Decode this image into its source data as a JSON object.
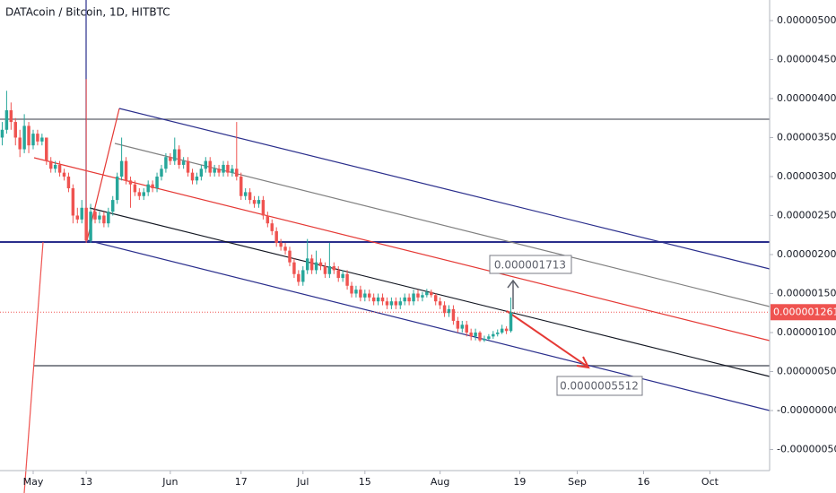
{
  "chart_data": {
    "type": "candlestick",
    "title": "DATAcoin / Bitcoin, 1D, HITBTC",
    "categories": [
      null,
      null,
      null,
      null,
      null,
      null,
      null,
      "May",
      null,
      null,
      null,
      null,
      null,
      null,
      null,
      null,
      null,
      null,
      null,
      "13",
      null,
      null,
      null,
      null,
      null,
      null,
      null,
      null,
      null,
      null,
      null,
      null,
      null,
      null,
      null,
      null,
      null,
      null,
      "Jun",
      null,
      null,
      null,
      null,
      null,
      null,
      null,
      null,
      null,
      null,
      null,
      null,
      null,
      null,
      null,
      "17",
      null,
      null,
      null,
      null,
      null,
      null,
      null,
      null,
      null,
      null,
      null,
      null,
      null,
      "Jul",
      null,
      null,
      null,
      null,
      null,
      null,
      null,
      null,
      null,
      null,
      null,
      null,
      null,
      "15",
      null,
      null,
      null,
      null,
      null,
      null,
      null,
      null,
      null,
      null,
      null,
      null,
      null,
      null,
      null,
      null,
      "Aug",
      null,
      null,
      null,
      null,
      null,
      null,
      null,
      null,
      null,
      null,
      null,
      null,
      null,
      null,
      null,
      null,
      null,
      "19",
      null,
      null,
      null,
      null,
      null,
      null,
      null,
      null,
      null,
      null,
      null,
      null,
      "Sep",
      null,
      null,
      null,
      null,
      null,
      null,
      null,
      null,
      null,
      null,
      null,
      null,
      null,
      null,
      "16",
      null,
      null,
      null,
      null,
      null,
      null,
      null,
      null,
      null,
      null,
      null,
      null,
      null,
      null,
      "Oct",
      null,
      null,
      null,
      null,
      null,
      null,
      null,
      null,
      null,
      null,
      null,
      null,
      null
    ],
    "open": [
      3.5e-06,
      3.6e-06,
      3.85e-06,
      3.7e-06,
      3.5e-06,
      3.35e-06,
      3.65e-06,
      3.4e-06,
      3.55e-06,
      3.45e-06,
      3.5e-06,
      3.2e-06,
      3.1e-06,
      3.15e-06,
      3.05e-06,
      3e-06,
      2.85e-06,
      2.5e-06,
      2.45e-06,
      2.6e-06,
      2.18e-06,
      2.55e-06,
      2.45e-06,
      2.5e-06,
      2.4e-06,
      2.55e-06,
      2.7e-06,
      3e-06,
      3.2e-06,
      2.95e-06,
      2.9e-06,
      2.8e-06,
      2.75e-06,
      2.8e-06,
      2.9e-06,
      2.85e-06,
      3e-06,
      3.1e-06,
      3.25e-06,
      3.2e-06,
      3.35e-06,
      3.15e-06,
      3.2e-06,
      3.05e-06,
      2.95e-06,
      3e-06,
      3.1e-06,
      3.2e-06,
      3.05e-06,
      3.1e-06,
      3.05e-06,
      3.15e-06,
      3.05e-06,
      3.1e-06,
      3e-06,
      2.75e-06,
      2.8e-06,
      2.7e-06,
      2.65e-06,
      2.7e-06,
      2.5e-06,
      2.4e-06,
      2.3e-06,
      2.15e-06,
      2.1e-06,
      2.05e-06,
      1.9e-06,
      1.75e-06,
      1.65e-06,
      1.8e-06,
      1.95e-06,
      1.8e-06,
      1.9e-06,
      1.85e-06,
      1.75e-06,
      1.85e-06,
      1.8e-06,
      1.7e-06,
      1.75e-06,
      1.6e-06,
      1.5e-06,
      1.55e-06,
      1.45e-06,
      1.5e-06,
      1.45e-06,
      1.4e-06,
      1.45e-06,
      1.4e-06,
      1.35e-06,
      1.4e-06,
      1.35e-06,
      1.4e-06,
      1.45e-06,
      1.4e-06,
      1.5e-06,
      1.45e-06,
      1.48e-06,
      1.52e-06,
      1.48e-06,
      1.4e-06,
      1.35e-06,
      1.25e-06,
      1.3e-06,
      1.15e-06,
      1.05e-06,
      1.1e-06,
      1e-06,
      9.5e-07,
      1e-06,
      9e-07,
      9.2e-07,
      9.5e-07,
      9.8e-07,
      1e-06,
      1.05e-06,
      1.02e-06,
      null,
      null,
      null,
      null,
      null,
      null,
      null,
      null,
      null,
      null,
      null,
      null,
      null,
      null,
      null,
      null,
      null,
      null,
      null,
      null,
      null,
      null,
      null,
      null,
      null,
      null,
      null,
      null,
      null,
      null,
      null,
      null,
      null,
      null,
      null,
      null,
      null,
      null,
      null,
      null,
      null,
      null,
      null,
      null,
      null,
      null,
      null,
      null,
      null,
      null,
      null,
      null,
      null,
      null,
      null,
      null,
      null,
      null
    ],
    "high": [
      3.7e-06,
      4.1e-06,
      3.95e-06,
      3.75e-06,
      3.6e-06,
      3.8e-06,
      3.7e-06,
      3.6e-06,
      3.6e-06,
      3.55e-06,
      3.5e-06,
      3.25e-06,
      3.2e-06,
      3.2e-06,
      3.1e-06,
      3.05e-06,
      2.9e-06,
      2.6e-06,
      2.7e-06,
      4.25e-06,
      2.65e-06,
      2.6e-06,
      2.55e-06,
      2.55e-06,
      2.6e-06,
      2.75e-06,
      3.05e-06,
      3.5e-06,
      3.25e-06,
      3e-06,
      2.95e-06,
      2.85e-06,
      2.85e-06,
      2.95e-06,
      2.95e-06,
      3.05e-06,
      3.15e-06,
      3.3e-06,
      3.3e-06,
      3.5e-06,
      3.4e-06,
      3.25e-06,
      3.25e-06,
      3.1e-06,
      3.05e-06,
      3.15e-06,
      3.25e-06,
      3.25e-06,
      3.15e-06,
      3.15e-06,
      3.2e-06,
      3.2e-06,
      3.15e-06,
      3.7e-06,
      3.05e-06,
      2.85e-06,
      2.85e-06,
      2.75e-06,
      2.75e-06,
      2.75e-06,
      2.55e-06,
      2.45e-06,
      2.35e-06,
      2.2e-06,
      2.15e-06,
      2.1e-06,
      1.95e-06,
      1.8e-06,
      1.85e-06,
      2.2e-06,
      2e-06,
      2.05e-06,
      1.95e-06,
      1.9e-06,
      2.15e-06,
      1.9e-06,
      1.85e-06,
      1.8e-06,
      1.8e-06,
      1.65e-06,
      1.6e-06,
      1.6e-06,
      1.55e-06,
      1.55e-06,
      1.5e-06,
      1.5e-06,
      1.5e-06,
      1.45e-06,
      1.45e-06,
      1.45e-06,
      1.45e-06,
      1.5e-06,
      1.5e-06,
      1.55e-06,
      1.55e-06,
      1.52e-06,
      1.56e-06,
      1.55e-06,
      1.5e-06,
      1.45e-06,
      1.4e-06,
      1.35e-06,
      1.35e-06,
      1.2e-06,
      1.15e-06,
      1.15e-06,
      1.05e-06,
      1.05e-06,
      1.02e-06,
      9.6e-07,
      9.8e-07,
      1.02e-06,
      1.04e-06,
      1.1e-06,
      1.08e-06,
      1.45e-06,
      null,
      null,
      null,
      null,
      null,
      null,
      null,
      null,
      null,
      null,
      null,
      null,
      null,
      null,
      null,
      null,
      null,
      null,
      null,
      null,
      null,
      null,
      null,
      null,
      null,
      null,
      null,
      null,
      null,
      null,
      null,
      null,
      null,
      null,
      null,
      null,
      null,
      null,
      null,
      null,
      null,
      null,
      null,
      null,
      null,
      null,
      null,
      null,
      null,
      null,
      null,
      null,
      null,
      null,
      null,
      null,
      null,
      null
    ],
    "low": [
      3.4e-06,
      3.55e-06,
      3.6e-06,
      3.4e-06,
      3.25e-06,
      3.3e-06,
      3.3e-06,
      3.35e-06,
      3.4e-06,
      3.4e-06,
      3.15e-06,
      3.05e-06,
      3.05e-06,
      3e-06,
      2.95e-06,
      2.8e-06,
      2.4e-06,
      2.4e-06,
      2.4e-06,
      2.15e-06,
      2.15e-06,
      2.4e-06,
      2.4e-06,
      2.35e-06,
      2.35e-06,
      2.5e-06,
      2.65e-06,
      2.95e-06,
      2.9e-06,
      2.6e-06,
      2.75e-06,
      2.7e-06,
      2.7e-06,
      2.75e-06,
      2.8e-06,
      2.8e-06,
      2.95e-06,
      3.05e-06,
      3.15e-06,
      3.15e-06,
      3.1e-06,
      3.1e-06,
      3e-06,
      2.9e-06,
      2.9e-06,
      2.95e-06,
      3.05e-06,
      3e-06,
      3e-06,
      3e-06,
      3e-06,
      3e-06,
      3e-06,
      2.95e-06,
      2.7e-06,
      2.7e-06,
      2.65e-06,
      2.6e-06,
      2.6e-06,
      2.45e-06,
      2.35e-06,
      2.25e-06,
      2.1e-06,
      2.05e-06,
      2e-06,
      1.85e-06,
      1.7e-06,
      1.6e-06,
      1.6e-06,
      1.75e-06,
      1.75e-06,
      1.75e-06,
      1.8e-06,
      1.7e-06,
      1.7e-06,
      1.75e-06,
      1.65e-06,
      1.65e-06,
      1.55e-06,
      1.45e-06,
      1.45e-06,
      1.4e-06,
      1.4e-06,
      1.4e-06,
      1.35e-06,
      1.35e-06,
      1.35e-06,
      1.3e-06,
      1.3e-06,
      1.3e-06,
      1.3e-06,
      1.35e-06,
      1.35e-06,
      1.35e-06,
      1.4e-06,
      1.4e-06,
      1.45e-06,
      1.45e-06,
      1.35e-06,
      1.3e-06,
      1.2e-06,
      1.2e-06,
      1.1e-06,
      1e-06,
      1e-06,
      9.5e-07,
      9e-07,
      9e-07,
      8.8e-07,
      8.8e-07,
      9e-07,
      9.2e-07,
      9.5e-07,
      9.8e-07,
      9.8e-07,
      1e-06,
      null,
      null,
      null,
      null,
      null,
      null,
      null,
      null,
      null,
      null,
      null,
      null,
      null,
      null,
      null,
      null,
      null,
      null,
      null,
      null,
      null,
      null,
      null,
      null,
      null,
      null,
      null,
      null,
      null,
      null,
      null,
      null,
      null,
      null,
      null,
      null,
      null,
      null,
      null,
      null,
      null,
      null,
      null,
      null,
      null,
      null,
      null,
      null,
      null,
      null,
      null,
      null,
      null,
      null,
      null,
      null,
      null,
      null
    ],
    "close": [
      3.6e-06,
      3.85e-06,
      3.7e-06,
      3.5e-06,
      3.35e-06,
      3.65e-06,
      3.4e-06,
      3.55e-06,
      3.45e-06,
      3.5e-06,
      3.2e-06,
      3.1e-06,
      3.15e-06,
      3.05e-06,
      3e-06,
      2.85e-06,
      2.5e-06,
      2.45e-06,
      2.6e-06,
      2.18e-06,
      2.55e-06,
      2.45e-06,
      2.5e-06,
      2.4e-06,
      2.55e-06,
      2.7e-06,
      3e-06,
      3.2e-06,
      2.95e-06,
      2.9e-06,
      2.8e-06,
      2.75e-06,
      2.8e-06,
      2.9e-06,
      2.85e-06,
      3e-06,
      3.1e-06,
      3.25e-06,
      3.2e-06,
      3.35e-06,
      3.15e-06,
      3.2e-06,
      3.05e-06,
      2.95e-06,
      3e-06,
      3.1e-06,
      3.2e-06,
      3.05e-06,
      3.1e-06,
      3.05e-06,
      3.15e-06,
      3.05e-06,
      3.1e-06,
      3e-06,
      2.75e-06,
      2.8e-06,
      2.7e-06,
      2.65e-06,
      2.7e-06,
      2.5e-06,
      2.4e-06,
      2.3e-06,
      2.15e-06,
      2.1e-06,
      2.05e-06,
      1.9e-06,
      1.75e-06,
      1.65e-06,
      1.8e-06,
      1.95e-06,
      1.8e-06,
      1.9e-06,
      1.85e-06,
      1.75e-06,
      1.85e-06,
      1.8e-06,
      1.7e-06,
      1.75e-06,
      1.6e-06,
      1.5e-06,
      1.55e-06,
      1.45e-06,
      1.5e-06,
      1.45e-06,
      1.4e-06,
      1.45e-06,
      1.4e-06,
      1.35e-06,
      1.4e-06,
      1.35e-06,
      1.4e-06,
      1.45e-06,
      1.4e-06,
      1.5e-06,
      1.45e-06,
      1.48e-06,
      1.52e-06,
      1.48e-06,
      1.4e-06,
      1.35e-06,
      1.25e-06,
      1.3e-06,
      1.15e-06,
      1.05e-06,
      1.1e-06,
      1e-06,
      9.5e-07,
      1e-06,
      9e-07,
      9.2e-07,
      9.5e-07,
      9.8e-07,
      1e-06,
      1.05e-06,
      1.02e-06,
      1.26e-06,
      null,
      null,
      null,
      null,
      null,
      null,
      null,
      null,
      null,
      null,
      null,
      null,
      null,
      null,
      null,
      null,
      null,
      null,
      null,
      null,
      null,
      null,
      null,
      null,
      null,
      null,
      null,
      null,
      null,
      null,
      null,
      null,
      null,
      null,
      null,
      null,
      null,
      null,
      null,
      null,
      null,
      null,
      null,
      null,
      null,
      null,
      null,
      null,
      null,
      null,
      null,
      null,
      null,
      null,
      null,
      null,
      null,
      null
    ],
    "up_color": "#26a69a",
    "down_color": "#ef5350",
    "ylim": [
      -7.7e-07,
      5.264e-06
    ],
    "yticks": [
      {
        "value": 5e-06,
        "label": "0.0000050000"
      },
      {
        "value": 4.5e-06,
        "label": "0.0000045000"
      },
      {
        "value": 4e-06,
        "label": "0.0000040000"
      },
      {
        "value": 3.5e-06,
        "label": "0.0000035000"
      },
      {
        "value": 3e-06,
        "label": "0.0000030000"
      },
      {
        "value": 2.5e-06,
        "label": "0.0000025000"
      },
      {
        "value": 2e-06,
        "label": "0.0000020000"
      },
      {
        "value": 1.5e-06,
        "label": "0.0000015000"
      },
      {
        "value": 1e-06,
        "label": "0.0000010000"
      },
      {
        "value": 5e-07,
        "label": "0.0000005000"
      },
      {
        "value": 0,
        "label": "-0.0000000000"
      },
      {
        "value": -5e-07,
        "label": "-0.0000005000"
      }
    ],
    "last_price": {
      "value": 1.2611e-06,
      "label": "0.0000012611"
    },
    "annotations": [
      "0.000001713",
      "0.0000005512"
    ]
  }
}
